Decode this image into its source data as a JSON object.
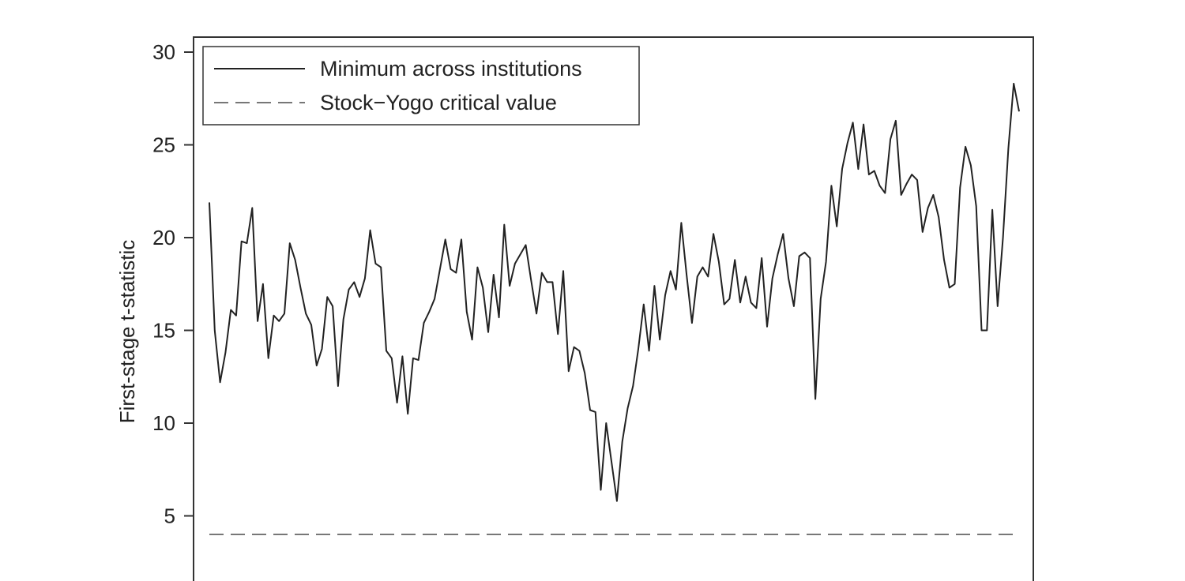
{
  "chart_data": {
    "type": "line",
    "ylabel": "First-stage t-statistic",
    "xlabel": "",
    "ylim": [
      0,
      31
    ],
    "yticks": [
      5,
      10,
      15,
      20,
      25,
      30
    ],
    "ytick_labels": [
      "5",
      "10",
      "15",
      "20",
      "25",
      "30"
    ],
    "grid": false,
    "legend": {
      "placement": "top-left",
      "entries": [
        "Minimum across institutions",
        "Stock−Yogo critical value"
      ]
    },
    "series": [
      {
        "name": "Minimum across institutions",
        "style": "solid",
        "color": "#222222",
        "values": [
          21.9,
          15.0,
          12.2,
          13.8,
          16.1,
          15.8,
          19.8,
          19.7,
          21.6,
          15.5,
          17.5,
          13.5,
          15.8,
          15.5,
          15.9,
          19.7,
          18.8,
          17.3,
          15.9,
          15.3,
          13.1,
          14.0,
          16.8,
          16.3,
          12.0,
          15.6,
          17.2,
          17.6,
          16.8,
          17.8,
          20.4,
          18.6,
          18.4,
          13.9,
          13.5,
          11.1,
          13.6,
          10.5,
          13.5,
          13.4,
          15.4,
          16.0,
          16.7,
          18.3,
          19.9,
          18.3,
          18.1,
          19.9,
          16.0,
          14.5,
          18.4,
          17.3,
          14.9,
          18.0,
          15.7,
          20.7,
          17.4,
          18.6,
          19.1,
          19.6,
          17.7,
          15.9,
          18.1,
          17.6,
          17.6,
          14.8,
          18.2,
          12.8,
          14.1,
          13.9,
          12.7,
          10.7,
          10.6,
          6.4,
          10.0,
          7.9,
          5.8,
          9.0,
          10.8,
          12.0,
          14.0,
          16.4,
          13.9,
          17.4,
          14.5,
          16.9,
          18.2,
          17.2,
          20.8,
          18.0,
          15.4,
          17.9,
          18.4,
          17.9,
          20.2,
          18.7,
          16.4,
          16.7,
          18.8,
          16.5,
          17.9,
          16.5,
          16.2,
          18.9,
          15.2,
          17.8,
          19.1,
          20.2,
          17.8,
          16.3,
          19.0,
          19.2,
          18.9,
          11.3,
          16.7,
          18.7,
          22.8,
          20.6,
          23.7,
          25.1,
          26.2,
          23.7,
          26.1,
          23.4,
          23.6,
          22.8,
          22.4,
          25.3,
          26.3,
          22.3,
          22.9,
          23.4,
          23.1,
          20.3,
          21.6,
          22.3,
          21.1,
          18.8,
          17.3,
          17.5,
          22.7,
          24.9,
          23.9,
          21.7,
          15.0,
          15.0,
          21.5,
          16.3,
          20.0,
          24.8,
          28.3,
          26.8
        ]
      },
      {
        "name": "Stock−Yogo critical value",
        "style": "dashed",
        "color": "#777777",
        "values": [
          4.0,
          4.0
        ]
      }
    ]
  }
}
